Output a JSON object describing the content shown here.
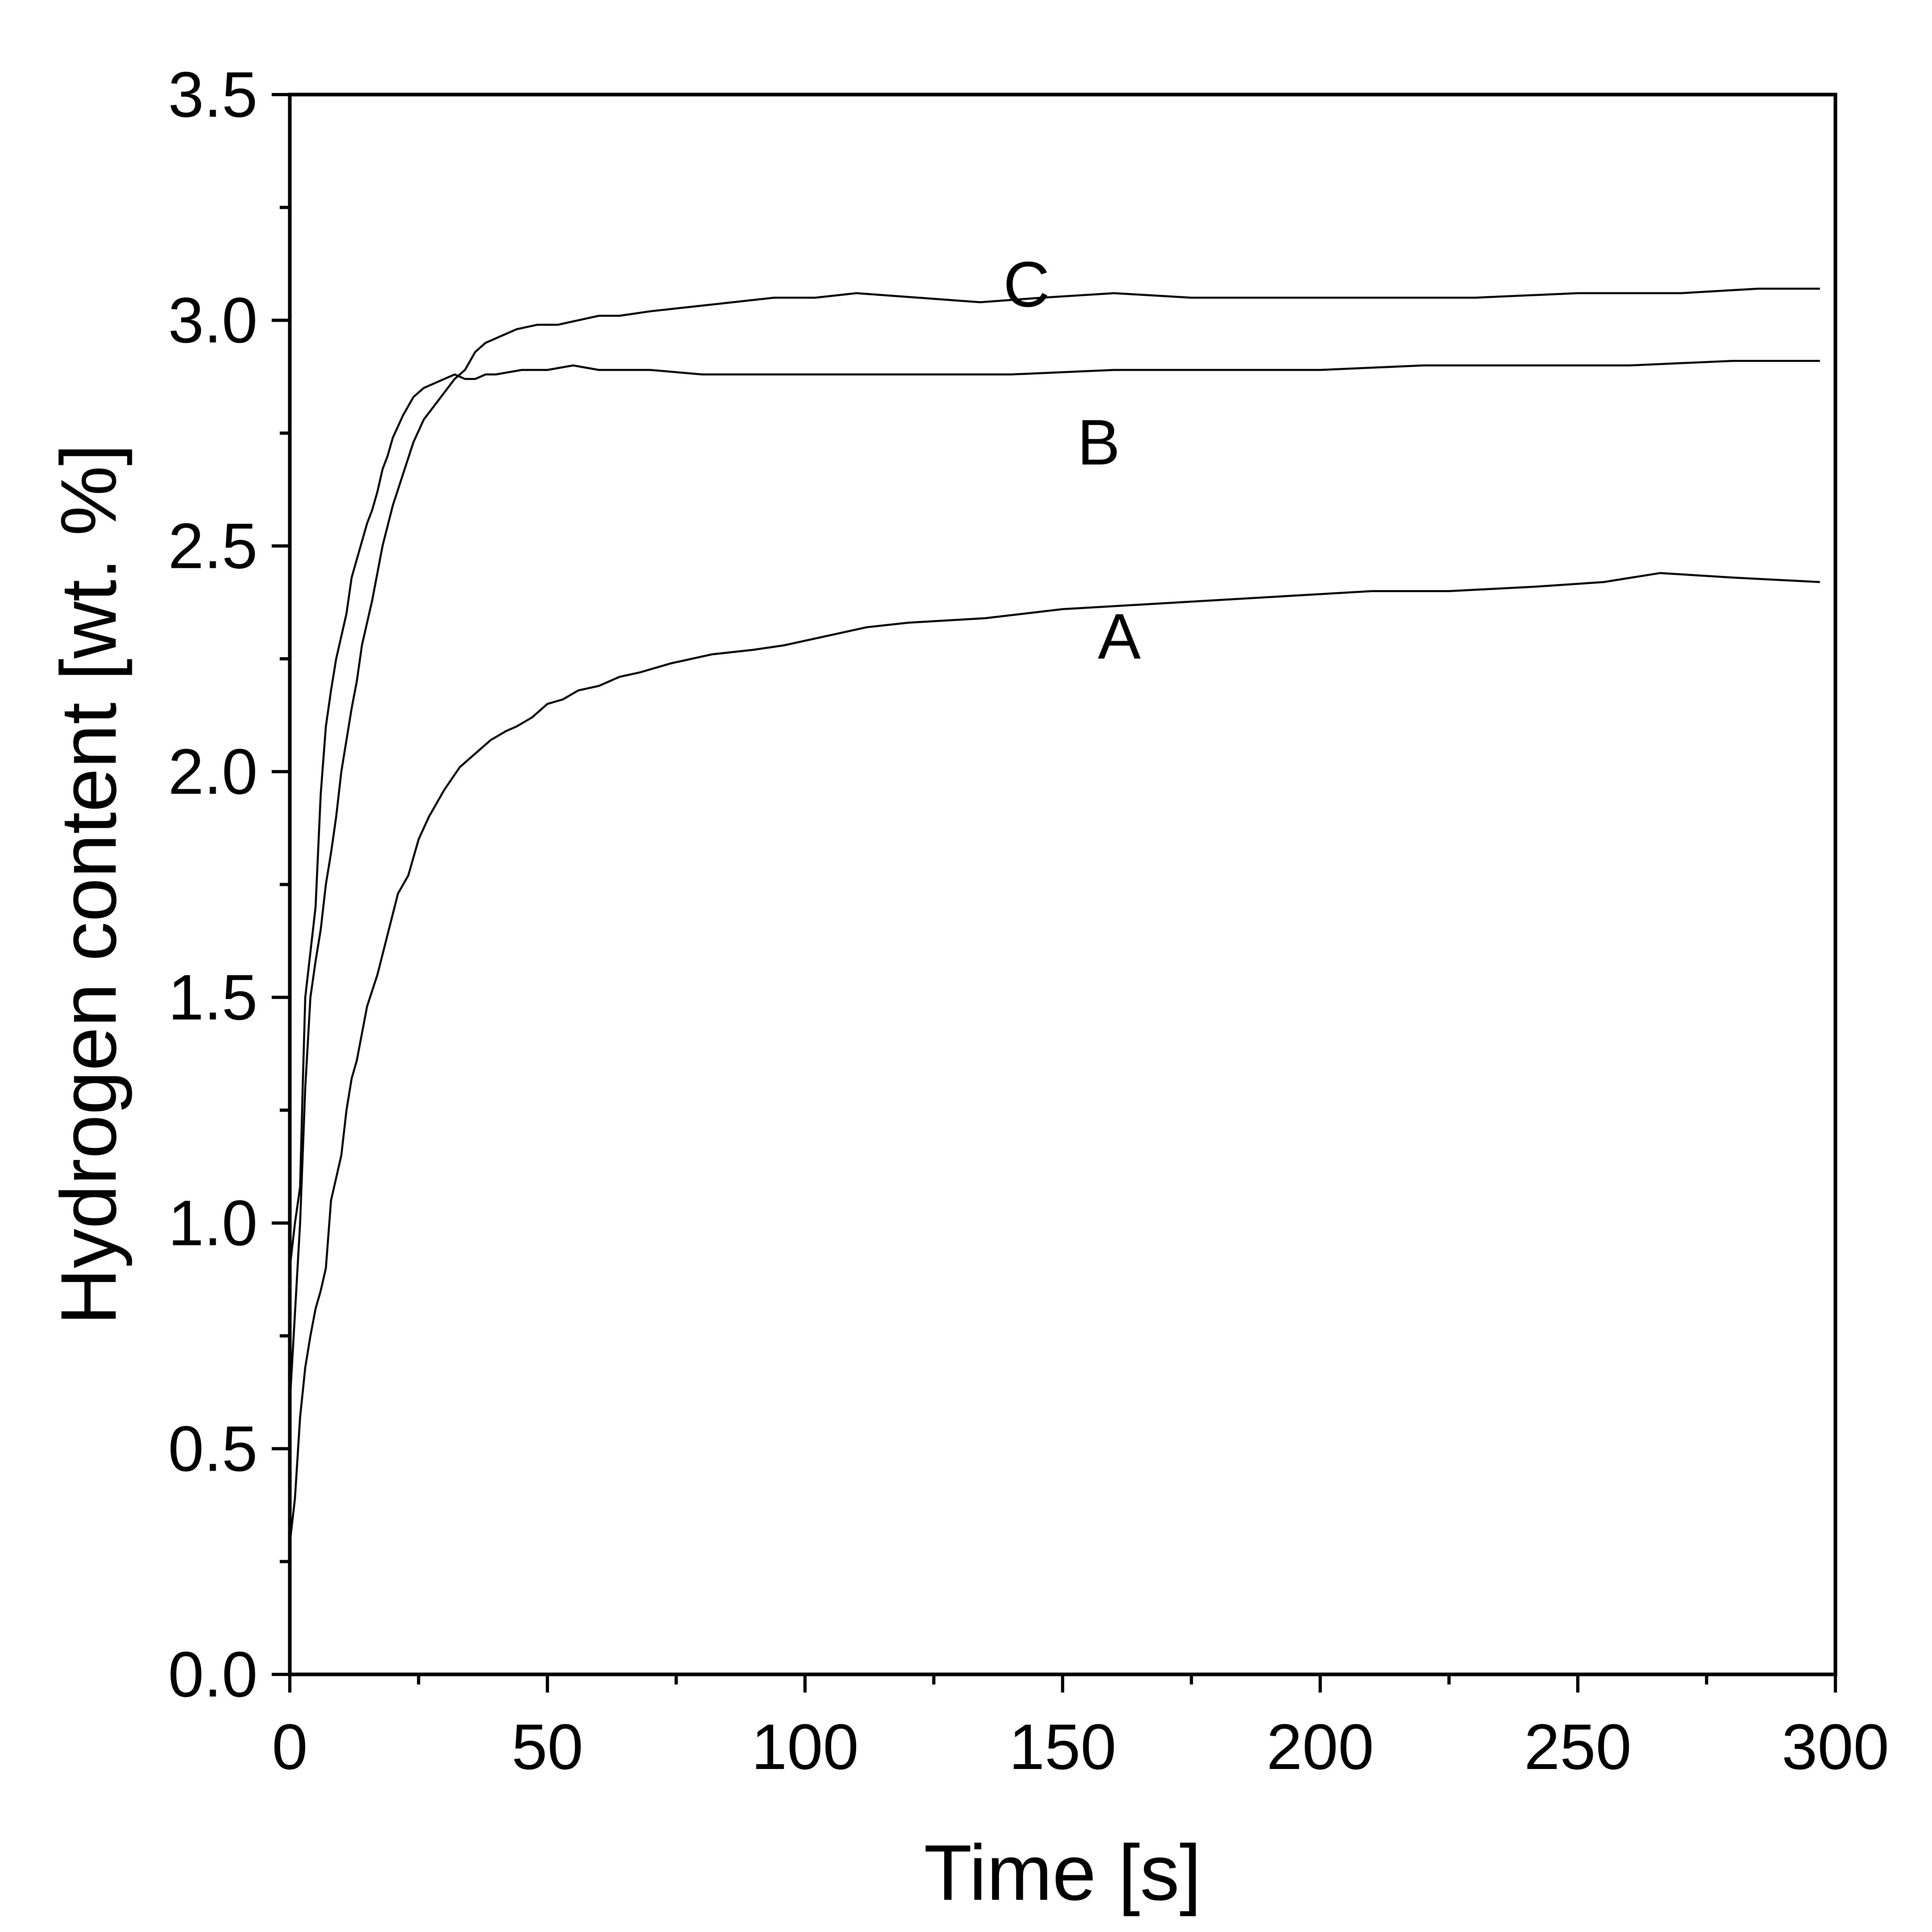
{
  "chart_data": {
    "type": "line",
    "title": "",
    "xlabel": "Time [s]",
    "ylabel": "Hydrogen content [wt. %]",
    "xlim": [
      0,
      300
    ],
    "ylim": [
      0,
      3.5
    ],
    "xticks": [
      0,
      50,
      100,
      150,
      200,
      250,
      300
    ],
    "xtick_labels": [
      "0",
      "50",
      "100",
      "150",
      "200",
      "250",
      "300"
    ],
    "yticks": [
      0,
      0.5,
      1.0,
      1.5,
      2.0,
      2.5,
      3.0,
      3.5
    ],
    "ytick_labels": [
      "0.0",
      "0.5",
      "1.0",
      "1.5",
      "2.0",
      "2.5",
      "3.0",
      "3.5"
    ],
    "x_minor_step": 25,
    "y_minor_step": 0.25,
    "grid": false,
    "legend": "none",
    "line_color": "#000000",
    "series": [
      {
        "name": "A",
        "label_at": [
          161,
          2.3
        ],
        "x": [
          0,
          1,
          2,
          3,
          4,
          5,
          6,
          7,
          8,
          9,
          10,
          11,
          12,
          13,
          14,
          15,
          17,
          19,
          21,
          23,
          25,
          27,
          30,
          33,
          36,
          39,
          42,
          44,
          47,
          50,
          53,
          56,
          60,
          64,
          68,
          74,
          82,
          90,
          96,
          104,
          112,
          120,
          135,
          150,
          165,
          180,
          195,
          210,
          225,
          242,
          255,
          266,
          280,
          297
        ],
        "y": [
          0.29,
          0.39,
          0.57,
          0.68,
          0.75,
          0.81,
          0.85,
          0.9,
          1.05,
          1.1,
          1.15,
          1.25,
          1.32,
          1.36,
          1.42,
          1.48,
          1.55,
          1.64,
          1.73,
          1.77,
          1.85,
          1.9,
          1.96,
          2.01,
          2.04,
          2.07,
          2.09,
          2.1,
          2.12,
          2.15,
          2.16,
          2.18,
          2.19,
          2.21,
          2.22,
          2.24,
          2.26,
          2.27,
          2.28,
          2.3,
          2.32,
          2.33,
          2.34,
          2.36,
          2.37,
          2.38,
          2.39,
          2.4,
          2.4,
          2.41,
          2.42,
          2.44,
          2.43,
          2.42
        ]
      },
      {
        "name": "B",
        "label_at": [
          157,
          2.73
        ],
        "x": [
          0,
          1,
          2,
          2.5,
          3,
          4,
          5,
          6,
          7,
          8,
          9,
          10,
          11,
          12,
          13,
          14,
          15,
          16,
          17,
          18,
          19,
          20,
          22,
          24,
          26,
          28,
          30,
          32,
          34,
          36,
          38,
          40,
          45,
          50,
          55,
          60,
          70,
          80,
          90,
          100,
          120,
          140,
          160,
          180,
          200,
          220,
          240,
          260,
          280,
          297
        ],
        "y": [
          0.9,
          1.0,
          1.08,
          1.3,
          1.5,
          1.6,
          1.7,
          1.95,
          2.1,
          2.18,
          2.25,
          2.3,
          2.35,
          2.43,
          2.47,
          2.51,
          2.55,
          2.58,
          2.62,
          2.67,
          2.7,
          2.74,
          2.79,
          2.83,
          2.85,
          2.86,
          2.87,
          2.88,
          2.87,
          2.87,
          2.88,
          2.88,
          2.89,
          2.89,
          2.9,
          2.89,
          2.89,
          2.88,
          2.88,
          2.88,
          2.88,
          2.88,
          2.89,
          2.89,
          2.89,
          2.9,
          2.9,
          2.9,
          2.91,
          2.91
        ]
      },
      {
        "name": "C",
        "label_at": [
          143,
          3.08
        ],
        "x": [
          0,
          1,
          2,
          3,
          4,
          5,
          6,
          7,
          8,
          9,
          10,
          11,
          12,
          13,
          14,
          16,
          18,
          20,
          22,
          24,
          26,
          28,
          30,
          32,
          34,
          36,
          38,
          40,
          44,
          48,
          52,
          56,
          60,
          64,
          70,
          78,
          86,
          94,
          102,
          110,
          122,
          134,
          146,
          160,
          175,
          190,
          210,
          230,
          250,
          270,
          285,
          297
        ],
        "y": [
          0.6,
          0.8,
          1.0,
          1.3,
          1.5,
          1.58,
          1.65,
          1.75,
          1.82,
          1.9,
          2.0,
          2.07,
          2.14,
          2.2,
          2.28,
          2.38,
          2.5,
          2.59,
          2.66,
          2.73,
          2.78,
          2.81,
          2.84,
          2.87,
          2.89,
          2.93,
          2.95,
          2.96,
          2.98,
          2.99,
          2.99,
          3.0,
          3.01,
          3.01,
          3.02,
          3.03,
          3.04,
          3.05,
          3.05,
          3.06,
          3.05,
          3.04,
          3.05,
          3.06,
          3.05,
          3.05,
          3.05,
          3.05,
          3.06,
          3.06,
          3.07,
          3.07
        ]
      }
    ]
  }
}
